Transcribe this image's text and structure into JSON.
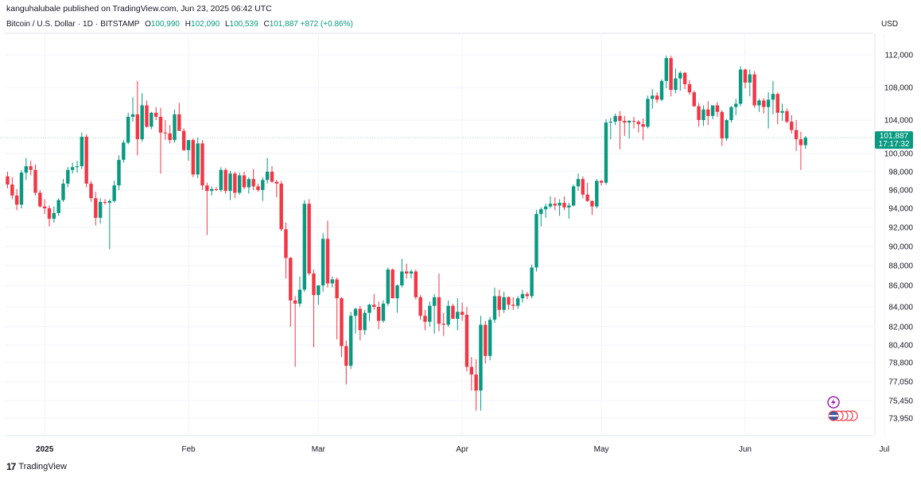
{
  "publisher_line": "kanguhalubale published on TradingView.com, Jun 23, 2025 06:42 UTC",
  "legend": {
    "symbol": "Bitcoin / U.S. Dollar",
    "interval": "1D",
    "exchange": "BITSTAMP",
    "open_label": "O",
    "open": "100,990",
    "high_label": "H",
    "high": "102,090",
    "low_label": "L",
    "low": "100,539",
    "close_label": "C",
    "close": "101,887",
    "change": "+872 (+0.86%)"
  },
  "currency": "USD",
  "last_price_tag": {
    "price": "101,887",
    "countdown": "17:17:32"
  },
  "footer": {
    "brand": "TradingView",
    "logo_text": "17"
  },
  "colors": {
    "up": "#089981",
    "down": "#f23645",
    "grid": "#f0f3fa",
    "text": "#131722",
    "brand_icon": "#9c27b0"
  },
  "icons": [
    "flash-alert-icon",
    "flag-badge-icon"
  ],
  "chart_data": {
    "type": "candlestick",
    "title": "Bitcoin / U.S. Dollar · 1D · BITSTAMP",
    "y_ticks": [
      112000,
      108000,
      104000,
      100000,
      98000,
      96000,
      94000,
      92000,
      90000,
      88000,
      86000,
      84000,
      82000,
      80400,
      78800,
      77050,
      75450,
      73950
    ],
    "y_tick_labels": [
      "112,000",
      "108,000",
      "104,000",
      "100,000",
      "98,000",
      "96,000",
      "94,000",
      "92,000",
      "90,000",
      "88,000",
      "86,000",
      "84,000",
      "82,000",
      "80,400",
      "78,800",
      "77,050",
      "75,450",
      "73,950"
    ],
    "x_labels": [
      "2025",
      "Feb",
      "Mar",
      "Apr",
      "May",
      "Jun",
      "Jul"
    ],
    "x_label_days": [
      8,
      39,
      67,
      98,
      128,
      159,
      189
    ],
    "start_date": "2024-12-24",
    "end_date": "2025-06-23",
    "candles": [
      [
        97500,
        98000,
        96200,
        96600
      ],
      [
        96600,
        97400,
        95000,
        95400
      ],
      [
        95400,
        96100,
        93800,
        94400
      ],
      [
        94400,
        98200,
        94000,
        97900
      ],
      [
        97900,
        99500,
        97100,
        98600
      ],
      [
        98600,
        99200,
        97600,
        98200
      ],
      [
        98200,
        98800,
        95400,
        95700
      ],
      [
        95700,
        96000,
        94100,
        94200
      ],
      [
        94200,
        95000,
        93400,
        94000
      ],
      [
        94000,
        94300,
        92100,
        92900
      ],
      [
        92900,
        94200,
        92500,
        93500
      ],
      [
        93500,
        95100,
        93200,
        94900
      ],
      [
        94900,
        97200,
        94700,
        96700
      ],
      [
        96700,
        98500,
        96300,
        98200
      ],
      [
        98200,
        99000,
        97800,
        98500
      ],
      [
        98500,
        99200,
        97900,
        98600
      ],
      [
        98600,
        102500,
        98300,
        102000
      ],
      [
        102000,
        102300,
        96300,
        96700
      ],
      [
        96700,
        97000,
        94700,
        95100
      ],
      [
        95100,
        95800,
        92200,
        93000
      ],
      [
        93000,
        95100,
        92400,
        94700
      ],
      [
        94700,
        95000,
        94400,
        94600
      ],
      [
        94600,
        95000,
        89700,
        94800
      ],
      [
        94800,
        97000,
        94600,
        96500
      ],
      [
        96500,
        99800,
        96000,
        99300
      ],
      [
        99300,
        101600,
        99000,
        101300
      ],
      [
        101300,
        104900,
        101100,
        104400
      ],
      [
        104400,
        106800,
        103800,
        104700
      ],
      [
        104700,
        108800,
        99800,
        101700
      ],
      [
        101700,
        107300,
        101400,
        105800
      ],
      [
        105800,
        106400,
        103100,
        103200
      ],
      [
        103200,
        105000,
        102900,
        104900
      ],
      [
        104900,
        105600,
        104000,
        104400
      ],
      [
        104400,
        105500,
        97800,
        102500
      ],
      [
        102500,
        104000,
        101600,
        102400
      ],
      [
        102400,
        103400,
        101200,
        101600
      ],
      [
        101600,
        105300,
        101300,
        104700
      ],
      [
        104700,
        106100,
        102900,
        102700
      ],
      [
        102700,
        103000,
        100300,
        100400
      ],
      [
        100400,
        101600,
        99200,
        101600
      ],
      [
        101600,
        101800,
        97400,
        97700
      ],
      [
        97700,
        101900,
        97300,
        101200
      ],
      [
        101200,
        101600,
        96000,
        96500
      ],
      [
        96500,
        96800,
        91200,
        95900
      ],
      [
        95900,
        96400,
        95400,
        96100
      ],
      [
        96100,
        96300,
        95900,
        96000
      ],
      [
        96000,
        98500,
        95800,
        98200
      ],
      [
        98200,
        98400,
        95600,
        95900
      ],
      [
        95900,
        98100,
        94900,
        97800
      ],
      [
        97800,
        98000,
        95100,
        95700
      ],
      [
        95700,
        97900,
        95500,
        97600
      ],
      [
        97600,
        98000,
        96100,
        96300
      ],
      [
        96300,
        97400,
        95600,
        97200
      ],
      [
        97200,
        98300,
        96000,
        96400
      ],
      [
        96400,
        96700,
        95800,
        96000
      ],
      [
        96000,
        97400,
        94800,
        97100
      ],
      [
        97100,
        99500,
        96700,
        98000
      ],
      [
        98000,
        98600,
        96800,
        96900
      ],
      [
        96900,
        97100,
        95200,
        96700
      ],
      [
        96700,
        97000,
        91600,
        91800
      ],
      [
        91800,
        92500,
        86700,
        88800
      ],
      [
        88800,
        88900,
        82000,
        84600
      ],
      [
        84600,
        85000,
        78400,
        84300
      ],
      [
        84300,
        86900,
        84000,
        85600
      ],
      [
        85600,
        94900,
        85400,
        94500
      ],
      [
        94500,
        95000,
        87000,
        87200
      ],
      [
        87200,
        87600,
        80200,
        85100
      ],
      [
        85100,
        86000,
        84200,
        86000
      ],
      [
        86000,
        91400,
        85400,
        90800
      ],
      [
        90800,
        92700,
        85800,
        86200
      ],
      [
        86200,
        86900,
        85800,
        86600
      ],
      [
        86600,
        86800,
        80900,
        84800
      ],
      [
        84800,
        84900,
        79300,
        80300
      ],
      [
        80300,
        80800,
        76800,
        78500
      ],
      [
        78500,
        83500,
        78200,
        83100
      ],
      [
        83100,
        83900,
        81400,
        83800
      ],
      [
        83800,
        84100,
        80800,
        81700
      ],
      [
        81700,
        83700,
        81300,
        83400
      ],
      [
        83400,
        84300,
        82600,
        84200
      ],
      [
        84200,
        85200,
        83700,
        84000
      ],
      [
        84000,
        84500,
        81800,
        82600
      ],
      [
        82600,
        84600,
        82400,
        84300
      ],
      [
        84300,
        87800,
        84100,
        87600
      ],
      [
        87600,
        87700,
        84800,
        84800
      ],
      [
        84800,
        86100,
        83400,
        86000
      ],
      [
        86000,
        88700,
        85800,
        87400
      ],
      [
        87400,
        88200,
        86700,
        87200
      ],
      [
        87200,
        87600,
        86700,
        87400
      ],
      [
        87400,
        87600,
        84700,
        84900
      ],
      [
        84900,
        85100,
        82700,
        83100
      ],
      [
        83100,
        83700,
        81700,
        82500
      ],
      [
        82500,
        84500,
        82000,
        84100
      ],
      [
        84100,
        85200,
        81400,
        84900
      ],
      [
        84900,
        87200,
        81600,
        82300
      ],
      [
        82300,
        83400,
        81200,
        82200
      ],
      [
        82200,
        84600,
        82000,
        84100
      ],
      [
        84100,
        84300,
        82800,
        82800
      ],
      [
        82800,
        84800,
        81700,
        83500
      ],
      [
        83500,
        84400,
        82600,
        83200
      ],
      [
        83200,
        84000,
        78000,
        78400
      ],
      [
        78400,
        79300,
        76300,
        77700
      ],
      [
        77700,
        79100,
        74600,
        76300
      ],
      [
        76300,
        83100,
        74600,
        82200
      ],
      [
        82200,
        82600,
        78700,
        79400
      ],
      [
        79400,
        83000,
        79000,
        82700
      ],
      [
        82700,
        85800,
        82400,
        85000
      ],
      [
        85000,
        85600,
        83000,
        83700
      ],
      [
        83700,
        85400,
        83400,
        84900
      ],
      [
        84900,
        85000,
        83700,
        84200
      ],
      [
        84200,
        84900,
        83700,
        84100
      ],
      [
        84100,
        85000,
        83800,
        84800
      ],
      [
        84800,
        85600,
        84400,
        85200
      ],
      [
        85200,
        85400,
        84700,
        85000
      ],
      [
        85000,
        88100,
        84800,
        87800
      ],
      [
        87800,
        93800,
        87400,
        93400
      ],
      [
        93400,
        94100,
        92100,
        93900
      ],
      [
        93900,
        94500,
        93000,
        94200
      ],
      [
        94200,
        95300,
        94000,
        94500
      ],
      [
        94500,
        95200,
        93800,
        94300
      ],
      [
        94300,
        95000,
        93200,
        94600
      ],
      [
        94600,
        95300,
        93800,
        94100
      ],
      [
        94100,
        94600,
        92900,
        94300
      ],
      [
        94300,
        96600,
        94200,
        96400
      ],
      [
        96400,
        97800,
        95900,
        97200
      ],
      [
        97200,
        97500,
        95100,
        95500
      ],
      [
        95500,
        96800,
        94700,
        94800
      ],
      [
        94800,
        94900,
        93300,
        94200
      ],
      [
        94200,
        97200,
        94000,
        97000
      ],
      [
        97000,
        97100,
        96500,
        96800
      ],
      [
        96800,
        104100,
        96600,
        103700
      ],
      [
        103700,
        104300,
        101700,
        103800
      ],
      [
        103800,
        104800,
        103400,
        104500
      ],
      [
        104500,
        105100,
        100500,
        103900
      ],
      [
        103900,
        104500,
        102100,
        103700
      ],
      [
        103700,
        104000,
        101800,
        103900
      ],
      [
        103900,
        104400,
        103000,
        103800
      ],
      [
        103800,
        104000,
        102500,
        103500
      ],
      [
        103500,
        104200,
        101600,
        103200
      ],
      [
        103200,
        107000,
        103000,
        106600
      ],
      [
        106600,
        107800,
        105400,
        107000
      ],
      [
        107000,
        107400,
        106100,
        106500
      ],
      [
        106500,
        109000,
        106300,
        108800
      ],
      [
        108800,
        111900,
        107900,
        111600
      ],
      [
        111600,
        111900,
        106900,
        107700
      ],
      [
        107700,
        110300,
        107300,
        109100
      ],
      [
        109100,
        110000,
        107600,
        109800
      ],
      [
        109800,
        109900,
        107800,
        108400
      ],
      [
        108400,
        108900,
        107100,
        107400
      ],
      [
        107400,
        107600,
        105600,
        105700
      ],
      [
        105700,
        106100,
        103200,
        104000
      ],
      [
        104000,
        105800,
        103300,
        105300
      ],
      [
        105300,
        106300,
        103400,
        104500
      ],
      [
        104500,
        105600,
        104100,
        105800
      ],
      [
        105800,
        106200,
        104400,
        105000
      ],
      [
        105000,
        105200,
        100900,
        101800
      ],
      [
        101800,
        104100,
        101500,
        104000
      ],
      [
        104000,
        105700,
        103700,
        105600
      ],
      [
        105600,
        106600,
        104600,
        106000
      ],
      [
        106000,
        110600,
        105700,
        110200
      ],
      [
        110200,
        110300,
        107900,
        108600
      ],
      [
        108600,
        110200,
        106900,
        109600
      ],
      [
        109600,
        110000,
        105500,
        105800
      ],
      [
        105800,
        106600,
        105000,
        106400
      ],
      [
        106400,
        106700,
        104800,
        105600
      ],
      [
        105600,
        107400,
        103000,
        106500
      ],
      [
        106500,
        108800,
        104700,
        107200
      ],
      [
        107200,
        107400,
        103500,
        104900
      ],
      [
        104900,
        106000,
        103900,
        105100
      ],
      [
        105100,
        105400,
        103600,
        103800
      ],
      [
        103800,
        104600,
        102400,
        102800
      ],
      [
        102800,
        104000,
        100300,
        101700
      ],
      [
        101700,
        102600,
        98200,
        100990
      ],
      [
        100990,
        102090,
        100539,
        101887
      ]
    ]
  }
}
